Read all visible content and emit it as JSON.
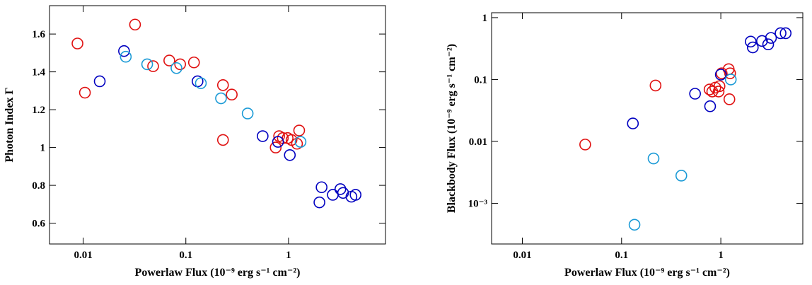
{
  "chart_data": [
    {
      "type": "scatter",
      "xlog": true,
      "xlim": [
        0.0047,
        8.8
      ],
      "ylim": [
        0.49,
        1.75
      ],
      "xticks": [
        0.01,
        0.1,
        1
      ],
      "yticks": [
        0.6,
        0.8,
        1,
        1.2,
        1.4,
        1.6
      ],
      "xlabel": "Powerlaw Flux (10⁻⁹ erg s⁻¹ cm⁻²)",
      "ylabel": "Photon Index Γ",
      "series": [
        {
          "color": "#e01010",
          "x": [
            0.0088,
            0.0104,
            0.032,
            0.048,
            0.069,
            0.088,
            0.12,
            0.23,
            0.28,
            0.23,
            0.75,
            0.81,
            0.88,
            0.98,
            1.07,
            1.21,
            1.27
          ],
          "values": [
            1.55,
            1.29,
            1.65,
            1.43,
            1.46,
            1.44,
            1.45,
            1.33,
            1.28,
            1.04,
            1.0,
            1.06,
            1.05,
            1.05,
            1.04,
            1.02,
            1.09
          ]
        },
        {
          "color": "#0000c0",
          "x": [
            0.0145,
            0.025,
            0.13,
            0.56,
            0.79,
            1.03,
            2.1,
            2.0,
            2.7,
            3.2,
            3.4,
            4.1,
            4.5
          ],
          "values": [
            1.35,
            1.51,
            1.35,
            1.06,
            1.03,
            0.96,
            0.79,
            0.71,
            0.75,
            0.78,
            0.76,
            0.74,
            0.75
          ]
        },
        {
          "color": "#1a9ad6",
          "x": [
            0.026,
            0.042,
            0.081,
            0.14,
            0.22,
            0.4,
            1.31
          ],
          "values": [
            1.48,
            1.44,
            1.42,
            1.34,
            1.26,
            1.18,
            1.03
          ]
        }
      ]
    },
    {
      "type": "scatter",
      "xlog": true,
      "ylog": true,
      "xlim": [
        0.0049,
        6.7
      ],
      "ylim": [
        0.00022,
        1.2
      ],
      "xticks": [
        0.01,
        0.1,
        1
      ],
      "yticks": [
        {
          "value": 0.001,
          "label": "10⁻³"
        },
        0.01,
        0.1,
        1
      ],
      "xlabel": "Powerlaw Flux (10⁻⁹ erg s⁻¹ cm⁻²)",
      "ylabel": "Blackbody Flux (10⁻⁹ erg s⁻¹ cm⁻²)",
      "series": [
        {
          "color": "#e01010",
          "x": [
            0.043,
            0.22,
            0.77,
            0.82,
            0.88,
            0.95,
            0.97,
            1.02,
            1.24,
            1.2,
            1.22
          ],
          "values": [
            0.0089,
            0.08,
            0.069,
            0.064,
            0.074,
            0.064,
            0.078,
            0.126,
            0.126,
            0.147,
            0.048
          ]
        },
        {
          "color": "#0000c0",
          "x": [
            0.13,
            0.55,
            0.78,
            1.0,
            2.0,
            2.1,
            2.6,
            3.0,
            3.2,
            4.0,
            4.5
          ],
          "values": [
            0.0195,
            0.059,
            0.037,
            0.12,
            0.41,
            0.33,
            0.42,
            0.37,
            0.47,
            0.56,
            0.56
          ]
        },
        {
          "color": "#1a9ad6",
          "x": [
            0.135,
            0.21,
            0.4,
            1.26
          ],
          "values": [
            0.00045,
            0.0053,
            0.0028,
            0.1
          ]
        }
      ]
    }
  ]
}
